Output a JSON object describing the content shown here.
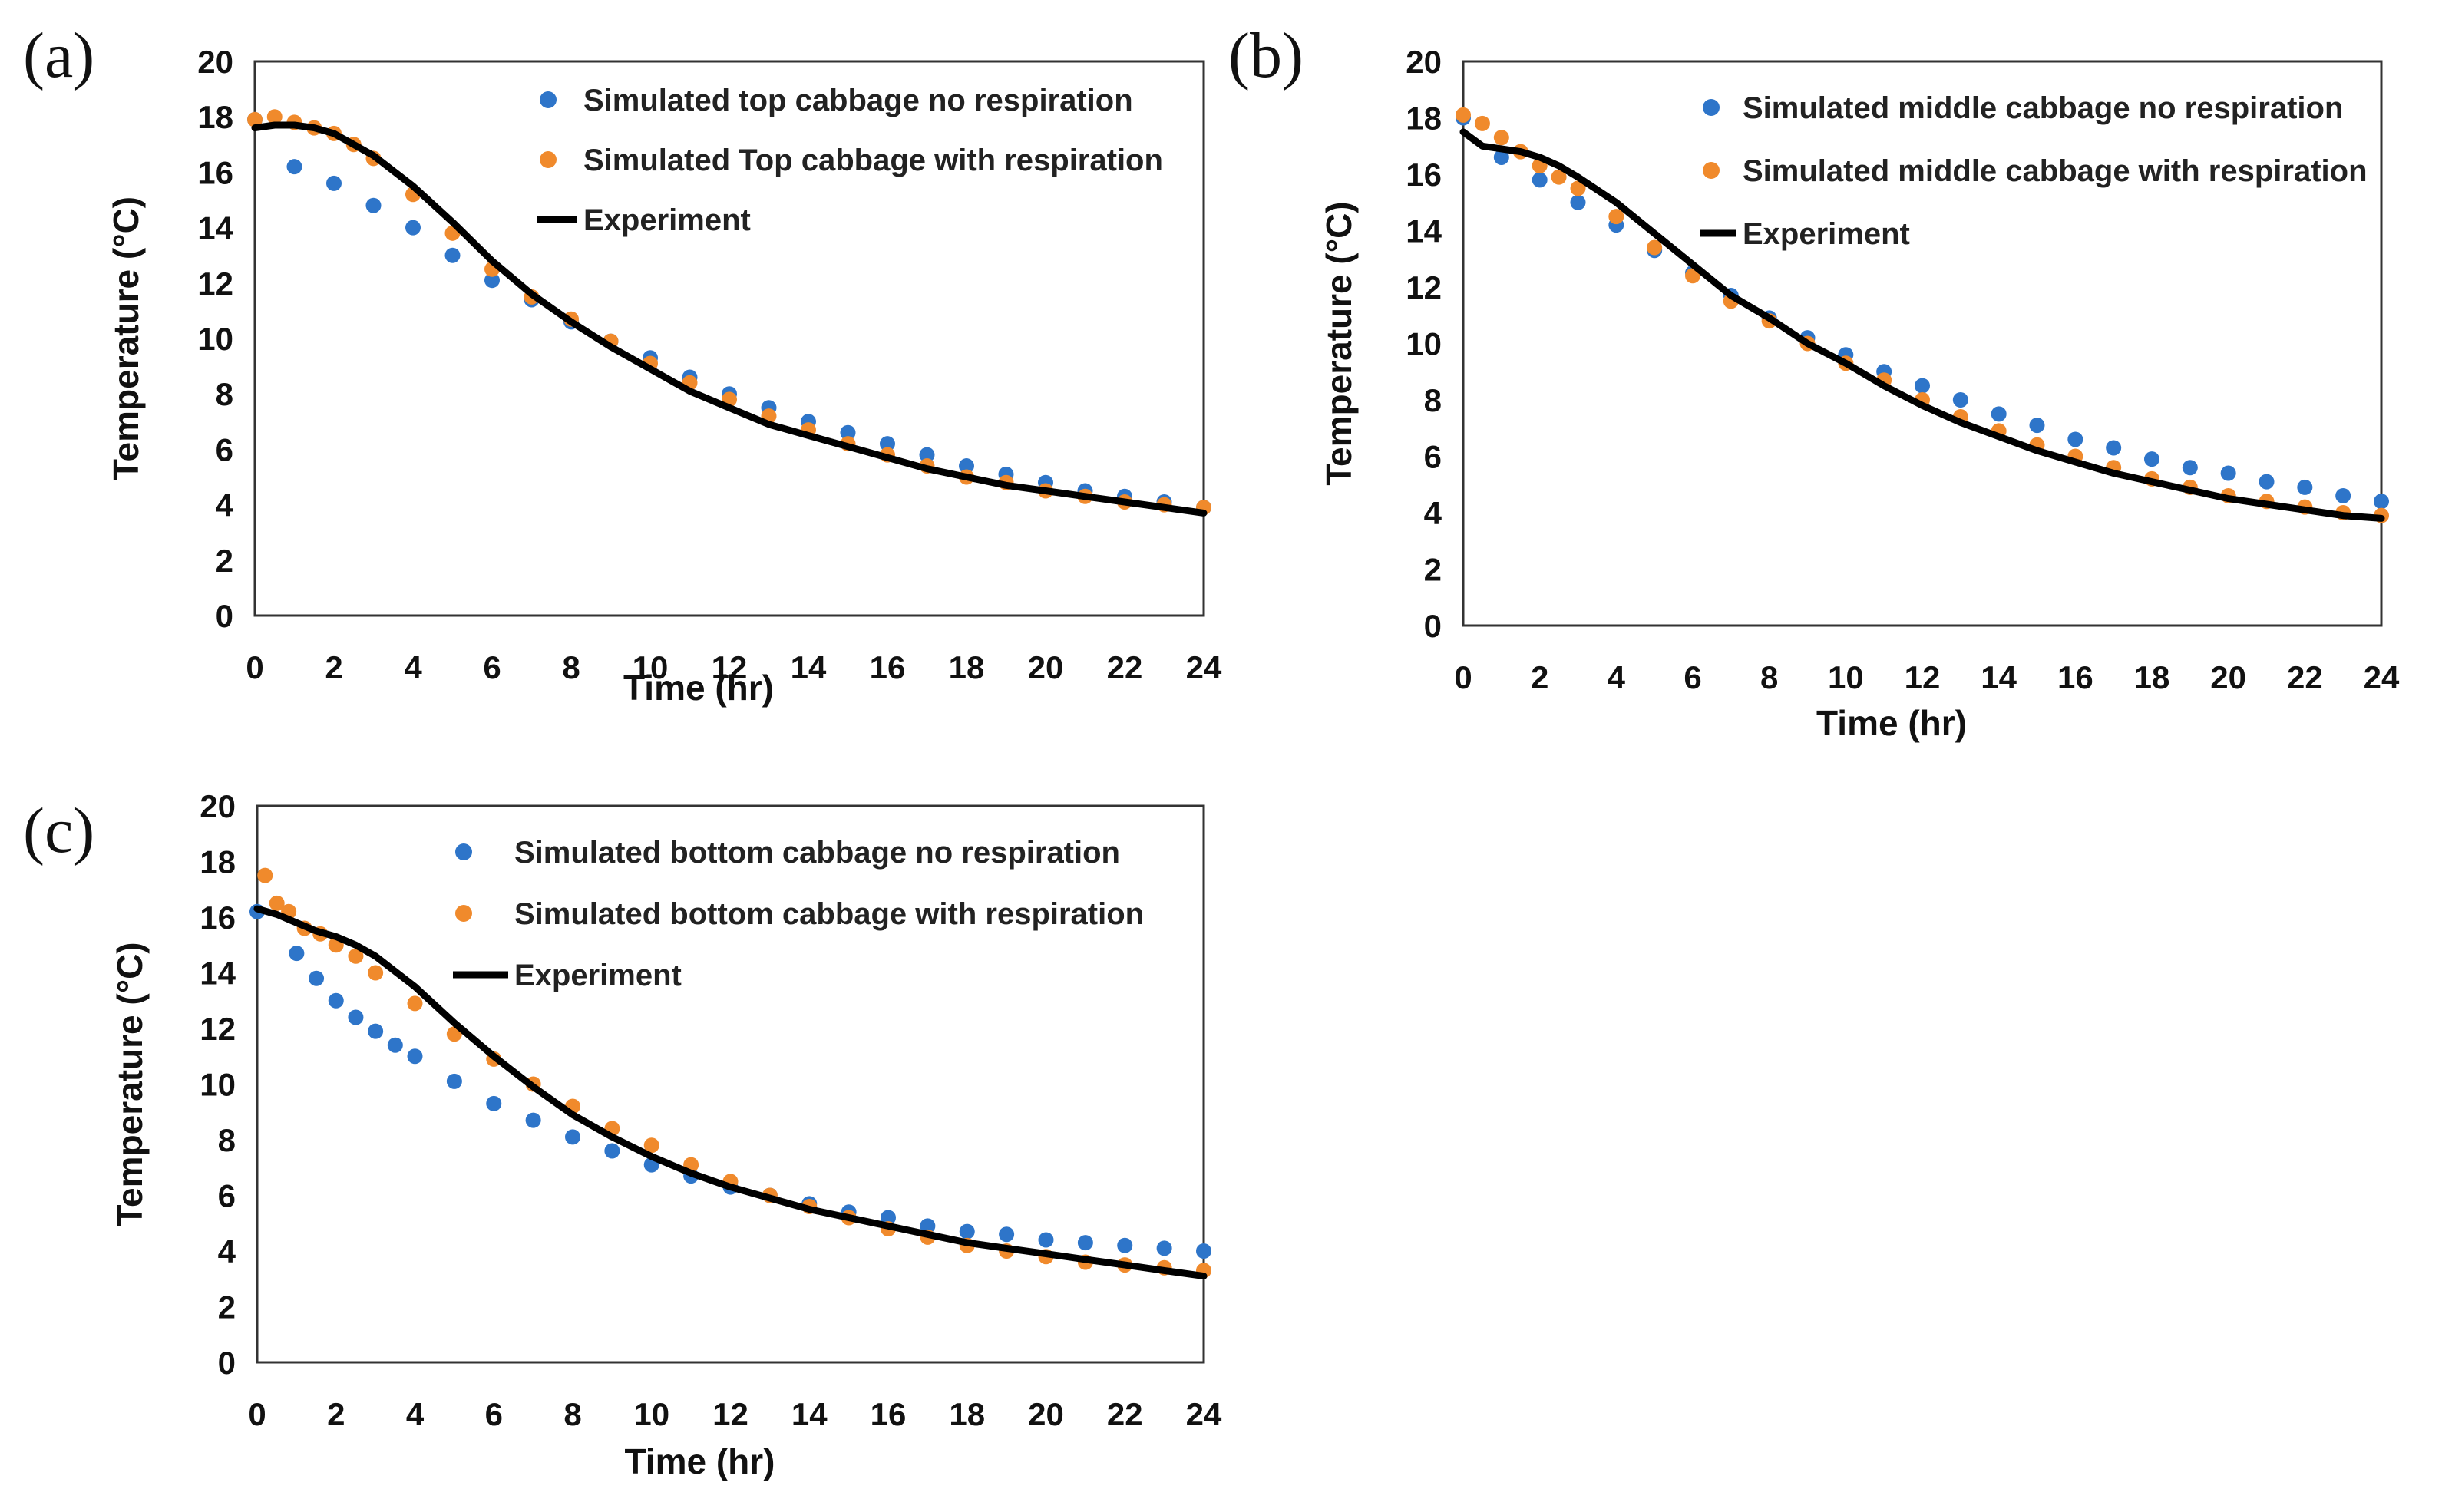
{
  "figure": {
    "colors": {
      "no_respiration": "#2E75C9",
      "with_respiration": "#F08A2C",
      "experiment": "#000000",
      "frame": "#333333"
    }
  },
  "chart_data": [
    {
      "panel_label": "(a)",
      "type": "scatter",
      "xlabel": "Time (hr)",
      "ylabel": "Temperature (°C)",
      "xlim": [
        0,
        24
      ],
      "ylim": [
        0,
        20
      ],
      "x_ticks": [
        "0",
        "2",
        "4",
        "6",
        "8",
        "10",
        "12",
        "14",
        "16",
        "18",
        "20",
        "22",
        "24"
      ],
      "y_ticks": [
        "0",
        "2",
        "4",
        "6",
        "8",
        "10",
        "12",
        "14",
        "16",
        "18",
        "20"
      ],
      "grid": false,
      "legend_position": "top-right",
      "series": [
        {
          "name": "Simulated top cabbage no respiration",
          "kind": "points",
          "color": "#2E75C9",
          "x": [
            0,
            1,
            2,
            3,
            4,
            5,
            6,
            7,
            8,
            9,
            10,
            11,
            12,
            13,
            14,
            15,
            16,
            17,
            18,
            19,
            20,
            21,
            22,
            23,
            24
          ],
          "y": [
            17.9,
            16.2,
            15.6,
            14.8,
            14.0,
            13.0,
            12.1,
            11.4,
            10.6,
            9.9,
            9.3,
            8.6,
            8.0,
            7.5,
            7.0,
            6.6,
            6.2,
            5.8,
            5.4,
            5.1,
            4.8,
            4.5,
            4.3,
            4.1,
            3.9
          ]
        },
        {
          "name": "Simulated Top cabbage with respiration",
          "kind": "points",
          "color": "#F08A2C",
          "x": [
            0,
            0.5,
            1,
            1.5,
            2,
            2.5,
            3,
            4,
            5,
            6,
            7,
            8,
            9,
            10,
            11,
            12,
            13,
            14,
            15,
            16,
            17,
            18,
            19,
            20,
            21,
            22,
            23,
            24
          ],
          "y": [
            17.9,
            18.0,
            17.8,
            17.6,
            17.4,
            17.0,
            16.5,
            15.2,
            13.8,
            12.5,
            11.5,
            10.7,
            9.9,
            9.1,
            8.4,
            7.8,
            7.2,
            6.7,
            6.2,
            5.8,
            5.4,
            5.0,
            4.8,
            4.5,
            4.3,
            4.1,
            4.0,
            3.9
          ]
        },
        {
          "name": "Experiment",
          "kind": "line",
          "color": "#000000",
          "x": [
            0,
            0.5,
            1,
            1.5,
            2,
            2.5,
            3,
            4,
            5,
            6,
            7,
            8,
            9,
            10,
            11,
            12,
            13,
            14,
            15,
            16,
            17,
            18,
            19,
            20,
            21,
            22,
            23,
            24
          ],
          "y": [
            17.6,
            17.7,
            17.7,
            17.6,
            17.4,
            17.0,
            16.6,
            15.5,
            14.2,
            12.8,
            11.6,
            10.6,
            9.7,
            8.9,
            8.1,
            7.5,
            6.9,
            6.5,
            6.1,
            5.7,
            5.3,
            5.0,
            4.7,
            4.5,
            4.3,
            4.1,
            3.9,
            3.7
          ]
        }
      ]
    },
    {
      "panel_label": "(b)",
      "type": "scatter",
      "xlabel": "Time (hr)",
      "ylabel": "Temperature (°C)",
      "xlim": [
        0,
        24
      ],
      "ylim": [
        0,
        20
      ],
      "x_ticks": [
        "0",
        "2",
        "4",
        "6",
        "8",
        "10",
        "12",
        "14",
        "16",
        "18",
        "20",
        "22",
        "24"
      ],
      "y_ticks": [
        "0",
        "2",
        "4",
        "6",
        "8",
        "10",
        "12",
        "14",
        "16",
        "18",
        "20"
      ],
      "grid": false,
      "legend_position": "top-right",
      "series": [
        {
          "name": "Simulated middle cabbage no respiration",
          "kind": "points",
          "color": "#2E75C9",
          "x": [
            0,
            1,
            2,
            3,
            4,
            5,
            6,
            7,
            8,
            9,
            10,
            11,
            12,
            13,
            14,
            15,
            16,
            17,
            18,
            19,
            20,
            21,
            22,
            23,
            24
          ],
          "y": [
            18.0,
            16.6,
            15.8,
            15.0,
            14.2,
            13.3,
            12.5,
            11.7,
            10.9,
            10.2,
            9.6,
            9.0,
            8.5,
            8.0,
            7.5,
            7.1,
            6.6,
            6.3,
            5.9,
            5.6,
            5.4,
            5.1,
            4.9,
            4.6,
            4.4
          ]
        },
        {
          "name": "Simulated middle cabbage with respiration",
          "kind": "points",
          "color": "#F08A2C",
          "x": [
            0,
            0.5,
            1,
            1.5,
            2,
            2.5,
            3,
            4,
            5,
            6,
            7,
            8,
            9,
            10,
            11,
            12,
            13,
            14,
            15,
            16,
            17,
            18,
            19,
            20,
            21,
            22,
            23,
            24
          ],
          "y": [
            18.1,
            17.8,
            17.3,
            16.8,
            16.3,
            15.9,
            15.5,
            14.5,
            13.4,
            12.4,
            11.5,
            10.8,
            10.0,
            9.3,
            8.7,
            8.0,
            7.4,
            6.9,
            6.4,
            6.0,
            5.6,
            5.2,
            4.9,
            4.6,
            4.4,
            4.2,
            4.0,
            3.9
          ]
        },
        {
          "name": "Experiment",
          "kind": "line",
          "color": "#000000",
          "x": [
            0,
            0.5,
            1,
            1.5,
            2,
            2.5,
            3,
            4,
            5,
            6,
            7,
            8,
            9,
            10,
            11,
            12,
            13,
            14,
            15,
            16,
            17,
            18,
            19,
            20,
            21,
            22,
            23,
            24
          ],
          "y": [
            17.5,
            17.0,
            16.9,
            16.8,
            16.6,
            16.3,
            15.9,
            15.0,
            13.9,
            12.8,
            11.7,
            10.9,
            10.0,
            9.3,
            8.5,
            7.8,
            7.2,
            6.7,
            6.2,
            5.8,
            5.4,
            5.1,
            4.8,
            4.5,
            4.3,
            4.1,
            3.9,
            3.8
          ]
        }
      ]
    },
    {
      "panel_label": "(c)",
      "type": "scatter",
      "xlabel": "Time (hr)",
      "ylabel": "Temperature (°C)",
      "xlim": [
        0,
        24
      ],
      "ylim": [
        0,
        20
      ],
      "x_ticks": [
        "0",
        "2",
        "4",
        "6",
        "8",
        "10",
        "12",
        "14",
        "16",
        "18",
        "20",
        "22",
        "24"
      ],
      "y_ticks": [
        "0",
        "2",
        "4",
        "6",
        "8",
        "10",
        "12",
        "14",
        "16",
        "18",
        "20"
      ],
      "grid": false,
      "legend_position": "top-right",
      "series": [
        {
          "name": "Simulated bottom cabbage no respiration",
          "kind": "points",
          "color": "#2E75C9",
          "x": [
            0,
            1,
            1.5,
            2,
            2.5,
            3,
            3.5,
            4,
            5,
            6,
            7,
            8,
            9,
            10,
            11,
            12,
            13,
            14,
            15,
            16,
            17,
            18,
            19,
            20,
            21,
            22,
            23,
            24
          ],
          "y": [
            16.2,
            14.7,
            13.8,
            13.0,
            12.4,
            11.9,
            11.4,
            11.0,
            10.1,
            9.3,
            8.7,
            8.1,
            7.6,
            7.1,
            6.7,
            6.3,
            6.0,
            5.7,
            5.4,
            5.2,
            4.9,
            4.7,
            4.6,
            4.4,
            4.3,
            4.2,
            4.1,
            4.0
          ]
        },
        {
          "name": "Simulated bottom cabbage with respiration",
          "kind": "points",
          "color": "#F08A2C",
          "x": [
            0.2,
            0.5,
            0.8,
            1.2,
            1.6,
            2,
            2.5,
            3,
            4,
            5,
            6,
            7,
            8,
            9,
            10,
            11,
            12,
            13,
            14,
            15,
            16,
            17,
            18,
            19,
            20,
            21,
            22,
            23,
            24
          ],
          "y": [
            17.5,
            16.5,
            16.2,
            15.6,
            15.4,
            15.0,
            14.6,
            14.0,
            12.9,
            11.8,
            10.9,
            10.0,
            9.2,
            8.4,
            7.8,
            7.1,
            6.5,
            6.0,
            5.6,
            5.2,
            4.8,
            4.5,
            4.2,
            4.0,
            3.8,
            3.6,
            3.5,
            3.4,
            3.3
          ]
        },
        {
          "name": "Experiment",
          "kind": "line",
          "color": "#000000",
          "x": [
            0,
            0.5,
            1,
            1.5,
            2,
            2.5,
            3,
            4,
            5,
            6,
            7,
            8,
            9,
            10,
            11,
            12,
            13,
            14,
            15,
            16,
            17,
            18,
            19,
            20,
            21,
            22,
            23,
            24
          ],
          "y": [
            16.3,
            16.1,
            15.8,
            15.5,
            15.3,
            15.0,
            14.6,
            13.5,
            12.2,
            11.0,
            9.9,
            8.9,
            8.1,
            7.4,
            6.8,
            6.3,
            5.9,
            5.5,
            5.2,
            4.9,
            4.6,
            4.3,
            4.1,
            3.9,
            3.7,
            3.5,
            3.3,
            3.1
          ]
        }
      ]
    }
  ]
}
